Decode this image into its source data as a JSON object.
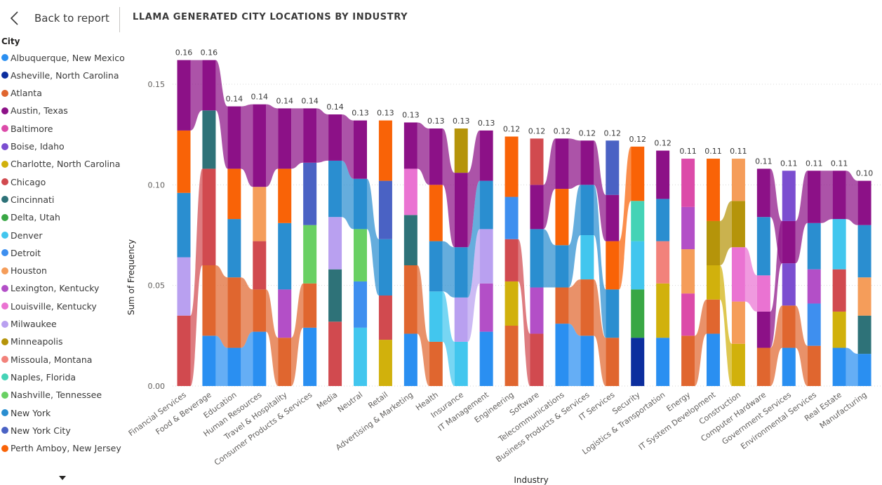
{
  "header": {
    "back_label": "Back to report",
    "title": "LLAMA GENERATED CITY LOCATIONS BY INDUSTRY"
  },
  "legend": {
    "title": "City",
    "items": [
      {
        "label": "Albuquerque, New Mexico",
        "color": "#2a8ff1"
      },
      {
        "label": "Asheville, North Carolina",
        "color": "#0c2e9e"
      },
      {
        "label": "Atlanta",
        "color": "#e0662f"
      },
      {
        "label": "Austin, Texas",
        "color": "#8c1187"
      },
      {
        "label": "Baltimore",
        "color": "#dc4ba9"
      },
      {
        "label": "Boise, Idaho",
        "color": "#7b4ed0"
      },
      {
        "label": "Charlotte, North Carolina",
        "color": "#d1b10c"
      },
      {
        "label": "Chicago",
        "color": "#d14a4f"
      },
      {
        "label": "Cincinnati",
        "color": "#2e7278"
      },
      {
        "label": "Delta, Utah",
        "color": "#39a745"
      },
      {
        "label": "Denver",
        "color": "#42c6ee"
      },
      {
        "label": "Detroit",
        "color": "#3e8fef"
      },
      {
        "label": "Houston",
        "color": "#f59d5a"
      },
      {
        "label": "Lexington, Kentucky",
        "color": "#b34fc7"
      },
      {
        "label": "Louisville, Kentucky",
        "color": "#ea73d2"
      },
      {
        "label": "Milwaukee",
        "color": "#b9a0f0"
      },
      {
        "label": "Minneapolis",
        "color": "#b5940a"
      },
      {
        "label": "Missoula, Montana",
        "color": "#f2827b"
      },
      {
        "label": "Naples, Florida",
        "color": "#45d3b6"
      },
      {
        "label": "Nashville, Tennessee",
        "color": "#69d063"
      },
      {
        "label": "New York",
        "color": "#2a8ed0"
      },
      {
        "label": "New York City",
        "color": "#4a62c4"
      },
      {
        "label": "Perth Amboy, New Jersey",
        "color": "#f96307"
      }
    ],
    "more_icon": "chevron-down-icon"
  },
  "chart_data": {
    "type": "bar",
    "stacked": true,
    "ribbons": true,
    "title": "LLAMA GENERATED CITY LOCATIONS BY INDUSTRY",
    "xlabel": "Industry",
    "ylabel": "Sum of Frequency",
    "ylim": [
      0,
      0.165
    ],
    "yticks": [
      "0.00",
      "0.05",
      "0.10",
      "0.15"
    ],
    "grid": true,
    "categories": [
      "Financial Services",
      "Food & Beverage",
      "Education",
      "Human Resources",
      "Travel & Hospitality",
      "Consumer Products & Services",
      "Media",
      "Neutral",
      "Retail",
      "Advertising & Marketing",
      "Health",
      "Insurance",
      "IT Management",
      "Engineering",
      "Software",
      "Telecommunications",
      "Business Products & Services",
      "IT Services",
      "Security",
      "Logistics & Transportation",
      "Energy",
      "IT System Development",
      "Construction",
      "Computer Hardware",
      "Government Services",
      "Environmental Services",
      "Real Estate",
      "Manufacturing"
    ],
    "total_labels": [
      "0.16",
      "0.16",
      "0.14",
      "0.14",
      "0.14",
      "0.14",
      "0.14",
      "0.13",
      "0.13",
      "0.13",
      "0.13",
      "0.13",
      "0.13",
      "0.12",
      "0.12",
      "0.12",
      "0.12",
      "0.12",
      "0.12",
      "0.12",
      "0.11",
      "0.11",
      "0.11",
      "0.11",
      "0.11",
      "0.11",
      "0.11",
      "0.10"
    ],
    "stacks": [
      [
        [
          "Chicago",
          0.035
        ],
        [
          "Milwaukee",
          0.029
        ],
        [
          "New York",
          0.032
        ],
        [
          "Perth Amboy, New Jersey",
          0.031
        ],
        [
          "Austin, Texas",
          0.035
        ]
      ],
      [
        [
          "Albuquerque, New Mexico",
          0.025
        ],
        [
          "Atlanta",
          0.035
        ],
        [
          "Chicago",
          0.048
        ],
        [
          "Cincinnati",
          0.029
        ],
        [
          "Austin, Texas",
          0.025
        ]
      ],
      [
        [
          "Albuquerque, New Mexico",
          0.019
        ],
        [
          "Atlanta",
          0.035
        ],
        [
          "New York",
          0.029
        ],
        [
          "Perth Amboy, New Jersey",
          0.025
        ],
        [
          "Austin, Texas",
          0.031
        ]
      ],
      [
        [
          "Albuquerque, New Mexico",
          0.027
        ],
        [
          "Atlanta",
          0.021
        ],
        [
          "Chicago",
          0.024
        ],
        [
          "Houston",
          0.027
        ],
        [
          "Austin, Texas",
          0.041
        ]
      ],
      [
        [
          "Atlanta",
          0.024
        ],
        [
          "Lexington, Kentucky",
          0.024
        ],
        [
          "New York",
          0.033
        ],
        [
          "Perth Amboy, New Jersey",
          0.027
        ],
        [
          "Austin, Texas",
          0.03
        ]
      ],
      [
        [
          "Albuquerque, New Mexico",
          0.029
        ],
        [
          "Atlanta",
          0.022
        ],
        [
          "Nashville, Tennessee",
          0.029
        ],
        [
          "New York City",
          0.031
        ],
        [
          "Austin, Texas",
          0.027
        ]
      ],
      [
        [
          "Chicago",
          0.032
        ],
        [
          "Cincinnati",
          0.026
        ],
        [
          "Milwaukee",
          0.026
        ],
        [
          "New York",
          0.028
        ],
        [
          "Austin, Texas",
          0.023
        ]
      ],
      [
        [
          "Denver",
          0.029
        ],
        [
          "Detroit",
          0.023
        ],
        [
          "Nashville, Tennessee",
          0.026
        ],
        [
          "New York",
          0.025
        ],
        [
          "Austin, Texas",
          0.029
        ]
      ],
      [
        [
          "Charlotte, North Carolina",
          0.023
        ],
        [
          "Chicago",
          0.022
        ],
        [
          "New York",
          0.028
        ],
        [
          "New York City",
          0.029
        ],
        [
          "Perth Amboy, New Jersey",
          0.03
        ]
      ],
      [
        [
          "Albuquerque, New Mexico",
          0.026
        ],
        [
          "Atlanta",
          0.034
        ],
        [
          "Cincinnati",
          0.025
        ],
        [
          "Louisville, Kentucky",
          0.023
        ],
        [
          "Austin, Texas",
          0.023
        ]
      ],
      [
        [
          "Atlanta",
          0.022
        ],
        [
          "Denver",
          0.025
        ],
        [
          "New York",
          0.025
        ],
        [
          "Perth Amboy, New Jersey",
          0.028
        ],
        [
          "Austin, Texas",
          0.028
        ]
      ],
      [
        [
          "Denver",
          0.022
        ],
        [
          "Milwaukee",
          0.022
        ],
        [
          "New York",
          0.025
        ],
        [
          "Austin, Texas",
          0.037
        ],
        [
          "Minneapolis",
          0.022
        ]
      ],
      [
        [
          "Albuquerque, New Mexico",
          0.027
        ],
        [
          "Lexington, Kentucky",
          0.024
        ],
        [
          "Milwaukee",
          0.027
        ],
        [
          "New York",
          0.024
        ],
        [
          "Austin, Texas",
          0.025
        ]
      ],
      [
        [
          "Atlanta",
          0.03
        ],
        [
          "Charlotte, North Carolina",
          0.022
        ],
        [
          "Chicago",
          0.021
        ],
        [
          "Detroit",
          0.021
        ],
        [
          "Perth Amboy, New Jersey",
          0.03
        ]
      ],
      [
        [
          "Chicago",
          0.026
        ],
        [
          "Lexington, Kentucky",
          0.023
        ],
        [
          "New York",
          0.029
        ],
        [
          "Austin, Texas",
          0.022
        ],
        [
          "Chicago",
          0.023
        ]
      ],
      [
        [
          "Albuquerque, New Mexico",
          0.031
        ],
        [
          "Atlanta",
          0.018
        ],
        [
          "New York",
          0.021
        ],
        [
          "Perth Amboy, New Jersey",
          0.028
        ],
        [
          "Austin, Texas",
          0.025
        ]
      ],
      [
        [
          "Albuquerque, New Mexico",
          0.025
        ],
        [
          "Atlanta",
          0.028
        ],
        [
          "Denver",
          0.022
        ],
        [
          "New York",
          0.025
        ],
        [
          "Austin, Texas",
          0.022
        ]
      ],
      [
        [
          "Atlanta",
          0.024
        ],
        [
          "New York",
          0.024
        ],
        [
          "Perth Amboy, New Jersey",
          0.024
        ],
        [
          "Austin, Texas",
          0.023
        ],
        [
          "New York City",
          0.027
        ]
      ],
      [
        [
          "Asheville, North Carolina",
          0.024
        ],
        [
          "Delta, Utah",
          0.024
        ],
        [
          "Denver",
          0.024
        ],
        [
          "Naples, Florida",
          0.02
        ],
        [
          "Perth Amboy, New Jersey",
          0.027
        ]
      ],
      [
        [
          "Albuquerque, New Mexico",
          0.024
        ],
        [
          "Charlotte, North Carolina",
          0.027
        ],
        [
          "Missoula, Montana",
          0.021
        ],
        [
          "New York",
          0.021
        ],
        [
          "Austin, Texas",
          0.024
        ]
      ],
      [
        [
          "Atlanta",
          0.025
        ],
        [
          "Baltimore",
          0.021
        ],
        [
          "Houston",
          0.022
        ],
        [
          "Lexington, Kentucky",
          0.021
        ],
        [
          "Baltimore",
          0.024
        ]
      ],
      [
        [
          "Albuquerque, New Mexico",
          0.026
        ],
        [
          "Atlanta",
          0.017
        ],
        [
          "Charlotte, North Carolina",
          0.017
        ],
        [
          "Minneapolis",
          0.022
        ],
        [
          "Perth Amboy, New Jersey",
          0.031
        ]
      ],
      [
        [
          "Charlotte, North Carolina",
          0.021
        ],
        [
          "Houston",
          0.021
        ],
        [
          "Louisville, Kentucky",
          0.027
        ],
        [
          "Minneapolis",
          0.023
        ],
        [
          "Houston",
          0.021
        ]
      ],
      [
        [
          "Atlanta",
          0.019
        ],
        [
          "Austin, Texas",
          0.018
        ],
        [
          "Louisville, Kentucky",
          0.018
        ],
        [
          "New York",
          0.029
        ],
        [
          "Austin, Texas",
          0.024
        ]
      ],
      [
        [
          "Albuquerque, New Mexico",
          0.019
        ],
        [
          "Atlanta",
          0.021
        ],
        [
          "Boise, Idaho",
          0.021
        ],
        [
          "Austin, Texas",
          0.021
        ],
        [
          "Boise, Idaho",
          0.025
        ]
      ],
      [
        [
          "Atlanta",
          0.02
        ],
        [
          "Detroit",
          0.021
        ],
        [
          "Lexington, Kentucky",
          0.017
        ],
        [
          "New York",
          0.023
        ],
        [
          "Austin, Texas",
          0.026
        ]
      ],
      [
        [
          "Albuquerque, New Mexico",
          0.019
        ],
        [
          "Charlotte, North Carolina",
          0.018
        ],
        [
          "Chicago",
          0.021
        ],
        [
          "Denver",
          0.025
        ],
        [
          "Austin, Texas",
          0.024
        ]
      ],
      [
        [
          "Albuquerque, New Mexico",
          0.016
        ],
        [
          "Cincinnati",
          0.019
        ],
        [
          "Houston",
          0.019
        ],
        [
          "New York",
          0.026
        ],
        [
          "Austin, Texas",
          0.022
        ]
      ]
    ]
  }
}
